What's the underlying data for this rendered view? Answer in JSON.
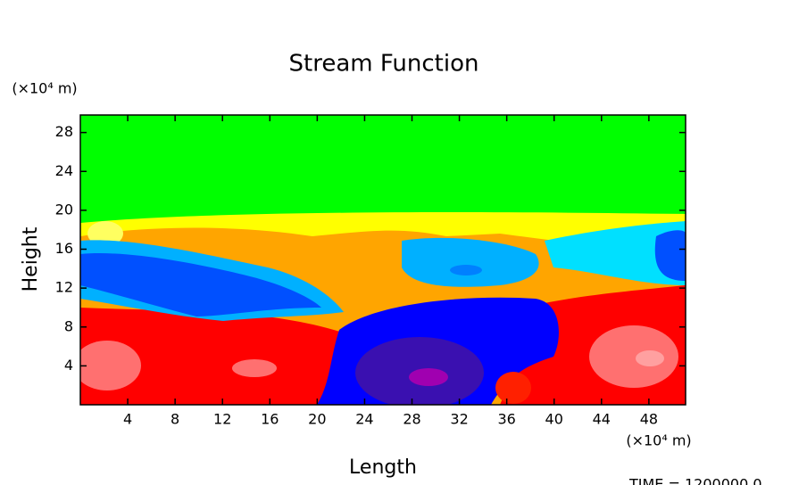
{
  "chart_data": {
    "type": "contour",
    "title": "Stream Function",
    "xlabel": "Length",
    "ylabel": "Height",
    "x_unit": "(×10⁴ m)",
    "y_unit": "(×10⁴ m)",
    "xlim": [
      0,
      51.1
    ],
    "ylim": [
      0,
      29.8
    ],
    "xticks": [
      4,
      8,
      12,
      16,
      20,
      24,
      28,
      32,
      36,
      40,
      44,
      48
    ],
    "yticks": [
      4,
      8,
      12,
      16,
      20,
      24,
      28
    ],
    "annotation": "TIME = 1200000.0"
  }
}
